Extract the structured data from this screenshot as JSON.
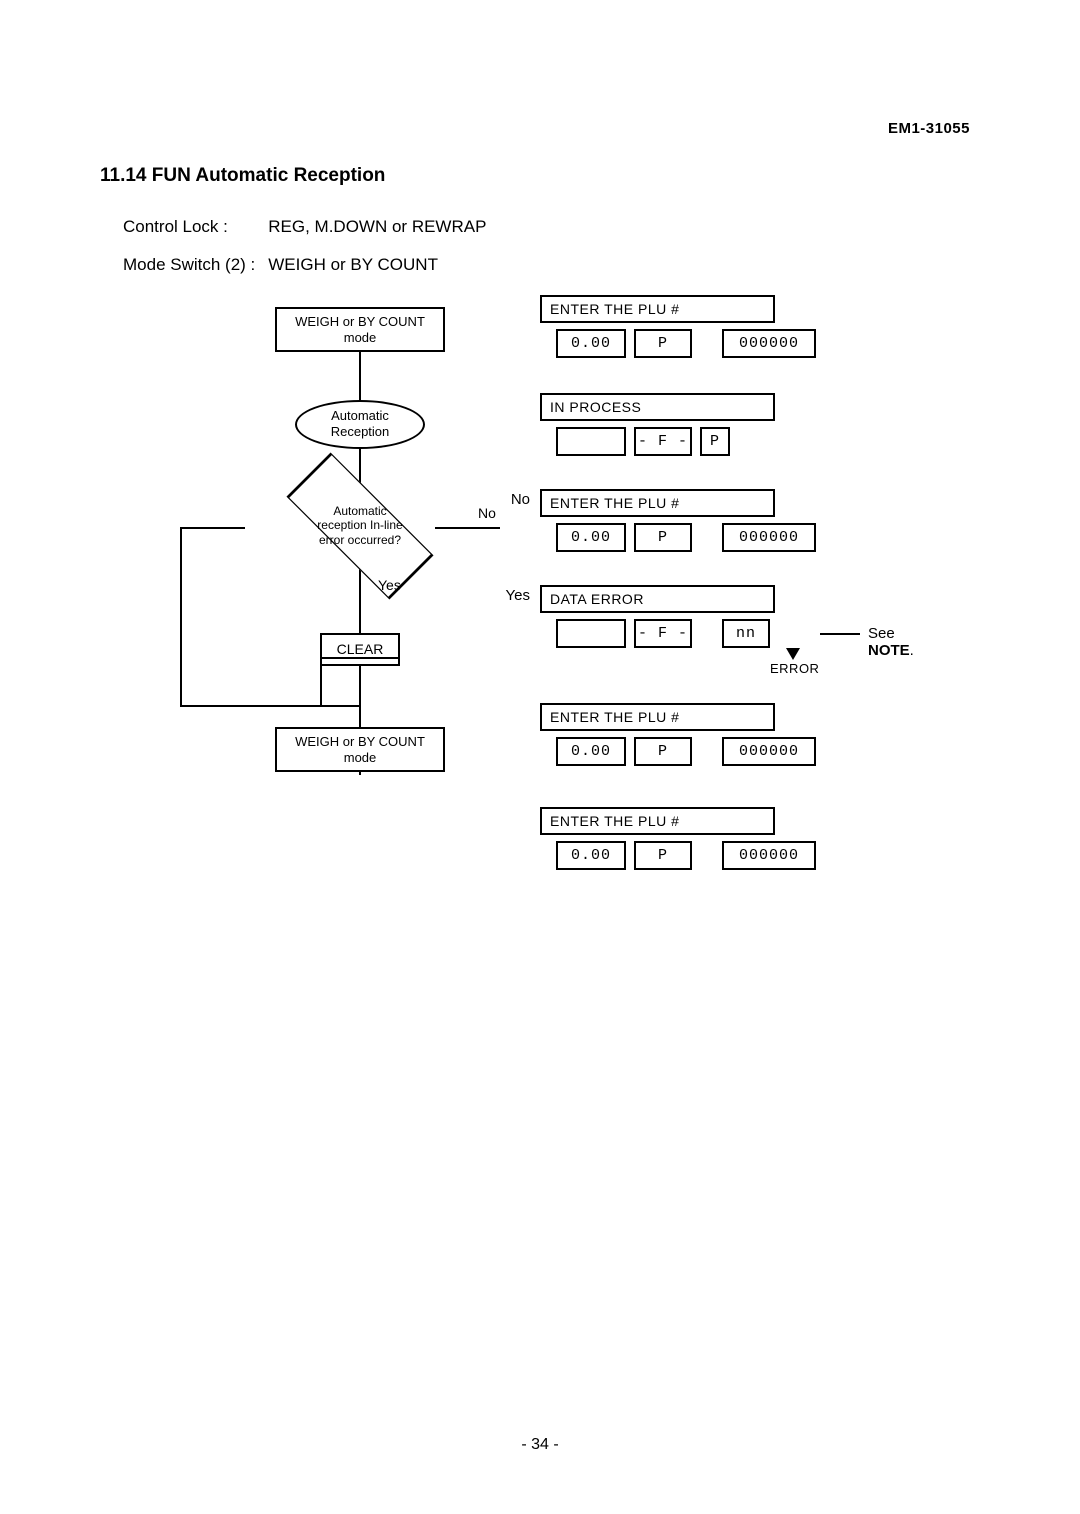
{
  "doc_id": "EM1-31055",
  "section_title": "11.14  FUN Automatic Reception",
  "settings": {
    "row1_label": "Control Lock :",
    "row1_value": "REG, M.DOWN or REWRAP",
    "row2_label": "Mode Switch (2) :",
    "row2_value": "WEIGH or BY COUNT"
  },
  "flowchart": {
    "start": "WEIGH or BY COUNT\nmode",
    "step1": "Automatic\nReception",
    "decision": "Automatic\nreception In-line\nerror occurred?",
    "yes_label": "Yes",
    "no_label": "No",
    "clear_label": "CLEAR",
    "end": "WEIGH or BY COUNT\nmode"
  },
  "panels": [
    {
      "side_label": "",
      "title": "ENTER THE PLU #",
      "title_class": "short",
      "cells": [
        {
          "txt": "0.00",
          "cls": "w60"
        },
        {
          "txt": "P",
          "cls": "w50"
        },
        {
          "gap": true
        },
        {
          "txt": "000000",
          "cls": "w85"
        }
      ]
    },
    {
      "side_label": "",
      "title": "IN PROCESS",
      "title_class": "short",
      "cells": [
        {
          "txt": "",
          "cls": "w60"
        },
        {
          "txt": "- F -",
          "cls": "w50"
        },
        {
          "txt": "P",
          "cls": "w25"
        }
      ]
    },
    {
      "side_label": "No",
      "title": "ENTER THE PLU #",
      "title_class": "short",
      "cells": [
        {
          "txt": "0.00",
          "cls": "w60"
        },
        {
          "txt": "P",
          "cls": "w50"
        },
        {
          "gap": true
        },
        {
          "txt": "000000",
          "cls": "w85"
        }
      ]
    },
    {
      "side_label": "Yes",
      "title": "DATA ERROR",
      "title_class": "short",
      "cells": [
        {
          "txt": "",
          "cls": "w60"
        },
        {
          "txt": "- F -",
          "cls": "w50"
        },
        {
          "gap": true
        },
        {
          "txt": "nn",
          "cls": "w40"
        }
      ],
      "error_below": "ERROR",
      "see_note": "See NOTE."
    },
    {
      "side_label": "",
      "title": "ENTER THE PLU #",
      "title_class": "short",
      "cells": [
        {
          "txt": "0.00",
          "cls": "w60"
        },
        {
          "txt": "P",
          "cls": "w50"
        },
        {
          "gap": true
        },
        {
          "txt": "000000",
          "cls": "w85"
        }
      ]
    },
    {
      "side_label": "",
      "title": "ENTER THE PLU #",
      "title_class": "short",
      "cells": [
        {
          "txt": "0.00",
          "cls": "w60"
        },
        {
          "txt": "P",
          "cls": "w50"
        },
        {
          "gap": true
        },
        {
          "txt": "000000",
          "cls": "w85"
        }
      ],
      "extra_top_gap": true
    }
  ],
  "page_number": "- 34 -",
  "colors": {
    "ink": "#000000",
    "paper": "#ffffff"
  },
  "layout": {
    "panel_tops": [
      0,
      98,
      194,
      290,
      408,
      512
    ],
    "flow_y": {
      "start": 12,
      "oval": 105,
      "diamond": 197,
      "clear": 338,
      "end": 432
    }
  }
}
